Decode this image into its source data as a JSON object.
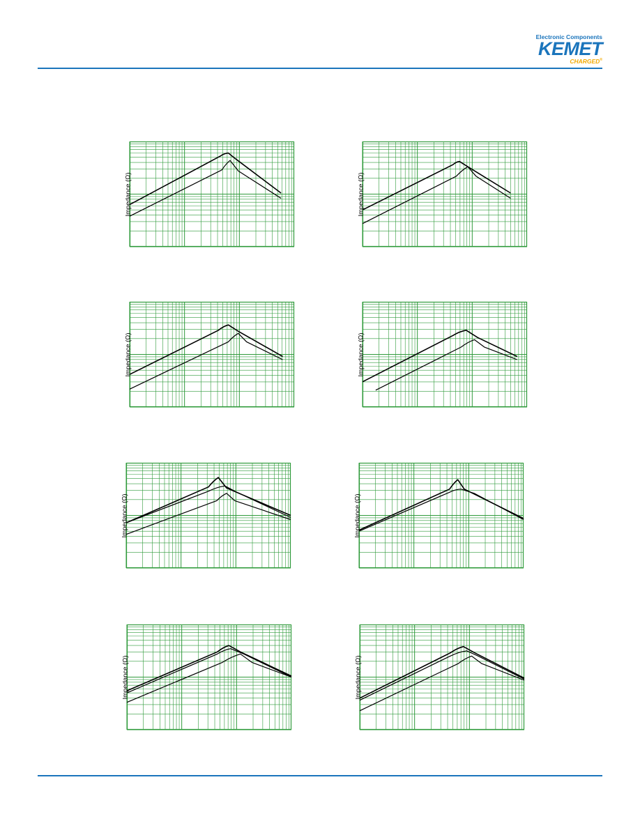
{
  "header": {
    "logo_tagline": "Electronic Components",
    "logo_word": "KEMET",
    "logo_charged": "CHARGED"
  },
  "colors": {
    "rule": "#1b75bc",
    "grid": "#2e9a3a",
    "curve": "#000000",
    "logo_orange": "#f2a900"
  },
  "chart_data": [
    {
      "type": "line",
      "ylabel": "Impedance (Ω)",
      "grid": true,
      "series": [
        {
          "values": [
            [
              0,
              0.4
            ],
            [
              0.55,
              0.86
            ],
            [
              0.6,
              0.89
            ],
            [
              0.64,
              0.84
            ],
            [
              0.92,
              0.51
            ]
          ]
        },
        {
          "values": [
            [
              0,
              0.29
            ],
            [
              0.56,
              0.73
            ],
            [
              0.61,
              0.82
            ],
            [
              0.66,
              0.72
            ],
            [
              0.92,
              0.46
            ]
          ]
        }
      ]
    },
    {
      "type": "line",
      "ylabel": "Impedance (Ω)",
      "grid": true,
      "series": [
        {
          "values": [
            [
              0,
              0.35
            ],
            [
              0.55,
              0.78
            ],
            [
              0.59,
              0.81
            ],
            [
              0.64,
              0.76
            ],
            [
              0.9,
              0.51
            ]
          ]
        },
        {
          "values": [
            [
              0,
              0.22
            ],
            [
              0.57,
              0.67
            ],
            [
              0.64,
              0.76
            ],
            [
              0.69,
              0.67
            ],
            [
              0.9,
              0.46
            ]
          ]
        }
      ]
    },
    {
      "type": "line",
      "ylabel": "Impedance (Ω)",
      "grid": true,
      "series": [
        {
          "values": [
            [
              0,
              0.31
            ],
            [
              0.54,
              0.73
            ],
            [
              0.6,
              0.78
            ],
            [
              0.66,
              0.72
            ],
            [
              0.93,
              0.48
            ]
          ]
        },
        {
          "values": [
            [
              0,
              0.17
            ],
            [
              0.6,
              0.62
            ],
            [
              0.66,
              0.7
            ],
            [
              0.71,
              0.62
            ],
            [
              0.93,
              0.45
            ]
          ]
        }
      ]
    },
    {
      "type": "line",
      "ylabel": "Impedance (Ω)",
      "grid": true,
      "series": [
        {
          "values": [
            [
              0,
              0.24
            ],
            [
              0.55,
              0.68
            ],
            [
              0.63,
              0.73
            ],
            [
              0.7,
              0.66
            ],
            [
              0.94,
              0.48
            ]
          ]
        },
        {
          "values": [
            [
              0.08,
              0.16
            ],
            [
              0.6,
              0.57
            ],
            [
              0.68,
              0.64
            ],
            [
              0.74,
              0.57
            ],
            [
              0.94,
              0.45
            ]
          ]
        }
      ]
    },
    {
      "type": "line",
      "ylabel": "Impedance (Ω)",
      "grid": true,
      "series": [
        {
          "values": [
            [
              0,
              0.43
            ],
            [
              0.5,
              0.77
            ],
            [
              0.56,
              0.86
            ],
            [
              0.61,
              0.76
            ],
            [
              1.0,
              0.5
            ]
          ]
        },
        {
          "values": [
            [
              0,
              0.43
            ],
            [
              0.5,
              0.73
            ],
            [
              0.6,
              0.78
            ],
            [
              0.66,
              0.73
            ],
            [
              1.0,
              0.48
            ]
          ]
        },
        {
          "values": [
            [
              0,
              0.32
            ],
            [
              0.55,
              0.64
            ],
            [
              0.61,
              0.71
            ],
            [
              0.66,
              0.64
            ],
            [
              1.0,
              0.46
            ]
          ]
        }
      ]
    },
    {
      "type": "line",
      "ylabel": "Impedance (Ω)",
      "grid": true,
      "series": [
        {
          "values": [
            [
              0,
              0.36
            ],
            [
              0.55,
              0.75
            ],
            [
              0.6,
              0.84
            ],
            [
              0.64,
              0.75
            ],
            [
              1.0,
              0.47
            ]
          ]
        },
        {
          "values": [
            [
              0,
              0.35
            ],
            [
              0.55,
              0.72
            ],
            [
              0.62,
              0.75
            ],
            [
              0.7,
              0.71
            ],
            [
              1.0,
              0.46
            ]
          ]
        }
      ]
    },
    {
      "type": "line",
      "ylabel": "Impedance (Ω)",
      "grid": true,
      "series": [
        {
          "values": [
            [
              0,
              0.37
            ],
            [
              0.55,
              0.74
            ],
            [
              0.62,
              0.8
            ],
            [
              0.69,
              0.74
            ],
            [
              1.0,
              0.51
            ]
          ]
        },
        {
          "values": [
            [
              0,
              0.35
            ],
            [
              0.55,
              0.72
            ],
            [
              0.63,
              0.77
            ],
            [
              0.71,
              0.72
            ],
            [
              1.0,
              0.5
            ]
          ]
        },
        {
          "values": [
            [
              0,
              0.26
            ],
            [
              0.58,
              0.64
            ],
            [
              0.69,
              0.72
            ],
            [
              0.76,
              0.64
            ],
            [
              1.0,
              0.5
            ]
          ]
        }
      ]
    },
    {
      "type": "line",
      "ylabel": "Impedance (Ω)",
      "grid": true,
      "series": [
        {
          "values": [
            [
              0,
              0.3
            ],
            [
              0.55,
              0.73
            ],
            [
              0.63,
              0.79
            ],
            [
              0.7,
              0.73
            ],
            [
              1.0,
              0.49
            ]
          ]
        },
        {
          "values": [
            [
              0,
              0.28
            ],
            [
              0.55,
              0.7
            ],
            [
              0.65,
              0.75
            ],
            [
              0.72,
              0.7
            ],
            [
              1.0,
              0.48
            ]
          ]
        },
        {
          "values": [
            [
              0,
              0.18
            ],
            [
              0.6,
              0.63
            ],
            [
              0.68,
              0.7
            ],
            [
              0.74,
              0.63
            ],
            [
              1.0,
              0.47
            ]
          ]
        }
      ]
    }
  ]
}
